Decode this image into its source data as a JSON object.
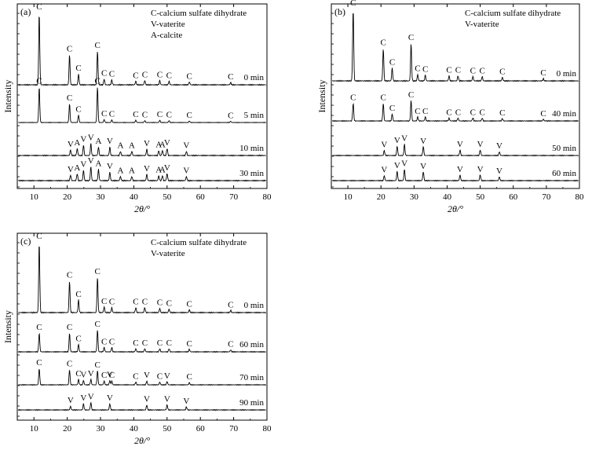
{
  "figure": {
    "x_axis_label": "2θ/°",
    "y_axis_label": "Intensity"
  },
  "chart_data": [
    {
      "panel": "(a)",
      "type": "line",
      "xlim": [
        5,
        80
      ],
      "xticks": [
        10,
        20,
        30,
        40,
        50,
        60,
        70,
        80
      ],
      "xlabel": "2θ/°",
      "ylabel": "Intensity",
      "legend": [
        "C-calcium sulfate dihydrate",
        "V-vaterite",
        "A-calcite"
      ],
      "series": [
        {
          "name": "0 min",
          "peaks": [
            {
              "x": 11.6,
              "h": 1.0,
              "m": "C"
            },
            {
              "x": 20.7,
              "h": 0.42,
              "m": "C"
            },
            {
              "x": 23.4,
              "h": 0.15,
              "m": "C"
            },
            {
              "x": 29.1,
              "h": 0.47,
              "m": "C"
            },
            {
              "x": 31.1,
              "h": 0.08,
              "m": "C"
            },
            {
              "x": 33.4,
              "h": 0.07,
              "m": "C"
            },
            {
              "x": 40.6,
              "h": 0.05,
              "m": "C"
            },
            {
              "x": 43.3,
              "h": 0.06,
              "m": "C"
            },
            {
              "x": 47.8,
              "h": 0.06,
              "m": "C"
            },
            {
              "x": 50.6,
              "h": 0.05,
              "m": "C"
            },
            {
              "x": 56.7,
              "h": 0.04,
              "m": "C"
            },
            {
              "x": 69.1,
              "h": 0.03,
              "m": "C"
            }
          ]
        },
        {
          "name": "5 min",
          "peaks": [
            {
              "x": 11.6,
              "h": 0.95,
              "m": "C"
            },
            {
              "x": 20.7,
              "h": 0.5,
              "m": "C"
            },
            {
              "x": 23.4,
              "h": 0.2,
              "m": "C"
            },
            {
              "x": 29.1,
              "h": 0.95,
              "m": "C"
            },
            {
              "x": 31.1,
              "h": 0.08,
              "m": "C"
            },
            {
              "x": 33.4,
              "h": 0.07,
              "m": "C"
            },
            {
              "x": 40.6,
              "h": 0.06,
              "m": "C"
            },
            {
              "x": 43.3,
              "h": 0.05,
              "m": "C"
            },
            {
              "x": 47.8,
              "h": 0.06,
              "m": "C"
            },
            {
              "x": 50.6,
              "h": 0.05,
              "m": "C"
            },
            {
              "x": 56.7,
              "h": 0.04,
              "m": "C"
            },
            {
              "x": 69.1,
              "h": 0.03,
              "m": "C"
            }
          ]
        },
        {
          "name": "10 min",
          "peaks": [
            {
              "x": 21.0,
              "h": 0.08,
              "m": "V"
            },
            {
              "x": 23.0,
              "h": 0.1,
              "m": "A"
            },
            {
              "x": 24.9,
              "h": 0.15,
              "m": "V"
            },
            {
              "x": 27.1,
              "h": 0.17,
              "m": "V"
            },
            {
              "x": 29.4,
              "h": 0.12,
              "m": "A"
            },
            {
              "x": 32.8,
              "h": 0.12,
              "m": "V"
            },
            {
              "x": 36.0,
              "h": 0.06,
              "m": "A"
            },
            {
              "x": 39.4,
              "h": 0.06,
              "m": "A"
            },
            {
              "x": 43.9,
              "h": 0.09,
              "m": "V"
            },
            {
              "x": 47.5,
              "h": 0.07,
              "m": "A"
            },
            {
              "x": 48.6,
              "h": 0.07,
              "m": "A"
            },
            {
              "x": 50.0,
              "h": 0.1,
              "m": "V"
            },
            {
              "x": 55.8,
              "h": 0.06,
              "m": "V"
            }
          ]
        },
        {
          "name": "30 min",
          "peaks": [
            {
              "x": 21.0,
              "h": 0.08,
              "m": "V"
            },
            {
              "x": 23.0,
              "h": 0.1,
              "m": "A"
            },
            {
              "x": 24.9,
              "h": 0.15,
              "m": "V"
            },
            {
              "x": 27.1,
              "h": 0.2,
              "m": "V"
            },
            {
              "x": 29.4,
              "h": 0.16,
              "m": "A"
            },
            {
              "x": 32.8,
              "h": 0.12,
              "m": "V"
            },
            {
              "x": 36.0,
              "h": 0.06,
              "m": "A"
            },
            {
              "x": 39.4,
              "h": 0.06,
              "m": "A"
            },
            {
              "x": 43.9,
              "h": 0.09,
              "m": "V"
            },
            {
              "x": 47.5,
              "h": 0.07,
              "m": "A"
            },
            {
              "x": 48.6,
              "h": 0.07,
              "m": "A"
            },
            {
              "x": 50.0,
              "h": 0.1,
              "m": "V"
            },
            {
              "x": 55.8,
              "h": 0.06,
              "m": "V"
            }
          ]
        }
      ]
    },
    {
      "panel": "(b)",
      "type": "line",
      "xlim": [
        5,
        80
      ],
      "xticks": [
        10,
        20,
        30,
        40,
        50,
        60,
        70,
        80
      ],
      "xlabel": "2θ/°",
      "ylabel": "Intensity",
      "legend": [
        "C-calcium sulfate dihydrate",
        "V-vaterite"
      ],
      "series": [
        {
          "name": "0 min",
          "peaks": [
            {
              "x": 11.6,
              "h": 1.0,
              "m": "C"
            },
            {
              "x": 20.7,
              "h": 0.45,
              "m": "C"
            },
            {
              "x": 23.4,
              "h": 0.18,
              "m": "C"
            },
            {
              "x": 29.1,
              "h": 0.52,
              "m": "C"
            },
            {
              "x": 31.1,
              "h": 0.09,
              "m": "C"
            },
            {
              "x": 33.4,
              "h": 0.08,
              "m": "C"
            },
            {
              "x": 40.6,
              "h": 0.07,
              "m": "C"
            },
            {
              "x": 43.3,
              "h": 0.07,
              "m": "C"
            },
            {
              "x": 47.8,
              "h": 0.06,
              "m": "C"
            },
            {
              "x": 50.6,
              "h": 0.06,
              "m": "C"
            },
            {
              "x": 56.7,
              "h": 0.05,
              "m": "C"
            },
            {
              "x": 69.1,
              "h": 0.03,
              "m": "C"
            }
          ]
        },
        {
          "name": "40 min",
          "peaks": [
            {
              "x": 11.6,
              "h": 0.3,
              "m": "C"
            },
            {
              "x": 20.7,
              "h": 0.3,
              "m": "C"
            },
            {
              "x": 23.4,
              "h": 0.12,
              "m": "C"
            },
            {
              "x": 29.1,
              "h": 0.35,
              "m": "C"
            },
            {
              "x": 31.1,
              "h": 0.07,
              "m": "C"
            },
            {
              "x": 33.4,
              "h": 0.07,
              "m": "C"
            },
            {
              "x": 40.6,
              "h": 0.05,
              "m": "C"
            },
            {
              "x": 43.3,
              "h": 0.05,
              "m": "C"
            },
            {
              "x": 47.8,
              "h": 0.05,
              "m": "C"
            },
            {
              "x": 50.6,
              "h": 0.05,
              "m": "C"
            },
            {
              "x": 56.7,
              "h": 0.04,
              "m": "C"
            },
            {
              "x": 69.1,
              "h": 0.03,
              "m": "C"
            }
          ]
        },
        {
          "name": "50 min",
          "peaks": [
            {
              "x": 21.0,
              "h": 0.08,
              "m": "V"
            },
            {
              "x": 24.9,
              "h": 0.15,
              "m": "V"
            },
            {
              "x": 27.1,
              "h": 0.18,
              "m": "V"
            },
            {
              "x": 32.8,
              "h": 0.14,
              "m": "V"
            },
            {
              "x": 43.9,
              "h": 0.09,
              "m": "V"
            },
            {
              "x": 50.0,
              "h": 0.09,
              "m": "V"
            },
            {
              "x": 55.8,
              "h": 0.06,
              "m": "V"
            }
          ]
        },
        {
          "name": "60 min",
          "peaks": [
            {
              "x": 21.0,
              "h": 0.08,
              "m": "V"
            },
            {
              "x": 24.9,
              "h": 0.15,
              "m": "V"
            },
            {
              "x": 27.1,
              "h": 0.18,
              "m": "V"
            },
            {
              "x": 32.8,
              "h": 0.14,
              "m": "V"
            },
            {
              "x": 43.9,
              "h": 0.09,
              "m": "V"
            },
            {
              "x": 50.0,
              "h": 0.09,
              "m": "V"
            },
            {
              "x": 55.8,
              "h": 0.06,
              "m": "V"
            }
          ]
        }
      ]
    },
    {
      "panel": "(c)",
      "type": "line",
      "xlim": [
        5,
        80
      ],
      "xticks": [
        10,
        20,
        30,
        40,
        50,
        60,
        70,
        80
      ],
      "xlabel": "2θ/°",
      "ylabel": "Intensity",
      "legend": [
        "C-calcium sulfate dihydrate",
        "V-vaterite"
      ],
      "series": [
        {
          "name": "0 min",
          "peaks": [
            {
              "x": 11.6,
              "h": 1.0,
              "m": "C"
            },
            {
              "x": 20.7,
              "h": 0.45,
              "m": "C"
            },
            {
              "x": 23.4,
              "h": 0.18,
              "m": "C"
            },
            {
              "x": 29.1,
              "h": 0.5,
              "m": "C"
            },
            {
              "x": 31.1,
              "h": 0.08,
              "m": "C"
            },
            {
              "x": 33.4,
              "h": 0.07,
              "m": "C"
            },
            {
              "x": 40.6,
              "h": 0.07,
              "m": "C"
            },
            {
              "x": 43.3,
              "h": 0.07,
              "m": "C"
            },
            {
              "x": 47.8,
              "h": 0.06,
              "m": "C"
            },
            {
              "x": 50.6,
              "h": 0.05,
              "m": "C"
            },
            {
              "x": 56.7,
              "h": 0.04,
              "m": "C"
            },
            {
              "x": 69.1,
              "h": 0.03,
              "m": "C"
            }
          ]
        },
        {
          "name": "60 min",
          "peaks": [
            {
              "x": 11.6,
              "h": 0.3,
              "m": "C"
            },
            {
              "x": 20.7,
              "h": 0.3,
              "m": "C"
            },
            {
              "x": 23.4,
              "h": 0.12,
              "m": "C"
            },
            {
              "x": 29.1,
              "h": 0.35,
              "m": "C"
            },
            {
              "x": 31.1,
              "h": 0.07,
              "m": "C"
            },
            {
              "x": 33.4,
              "h": 0.07,
              "m": "C"
            },
            {
              "x": 40.6,
              "h": 0.05,
              "m": "C"
            },
            {
              "x": 43.3,
              "h": 0.05,
              "m": "C"
            },
            {
              "x": 47.8,
              "h": 0.05,
              "m": "C"
            },
            {
              "x": 50.6,
              "h": 0.05,
              "m": "C"
            },
            {
              "x": 56.7,
              "h": 0.04,
              "m": "C"
            },
            {
              "x": 69.1,
              "h": 0.03,
              "m": "C"
            }
          ]
        },
        {
          "name": "70 min",
          "peaks": [
            {
              "x": 11.6,
              "h": 0.3,
              "m": "C"
            },
            {
              "x": 20.7,
              "h": 0.28,
              "m": "C"
            },
            {
              "x": 23.4,
              "h": 0.1,
              "m": "C"
            },
            {
              "x": 24.9,
              "h": 0.08,
              "m": "V"
            },
            {
              "x": 27.1,
              "h": 0.1,
              "m": "V"
            },
            {
              "x": 29.1,
              "h": 0.26,
              "m": "C"
            },
            {
              "x": 31.1,
              "h": 0.07,
              "m": "C"
            },
            {
              "x": 32.8,
              "h": 0.08,
              "m": "V"
            },
            {
              "x": 33.4,
              "h": 0.07,
              "m": "C"
            },
            {
              "x": 40.6,
              "h": 0.05,
              "m": "C"
            },
            {
              "x": 43.9,
              "h": 0.07,
              "m": "V"
            },
            {
              "x": 47.8,
              "h": 0.05,
              "m": "C"
            },
            {
              "x": 50.0,
              "h": 0.06,
              "m": "V"
            },
            {
              "x": 56.7,
              "h": 0.04,
              "m": "C"
            }
          ]
        },
        {
          "name": "90 min",
          "peaks": [
            {
              "x": 21.0,
              "h": 0.06,
              "m": "V"
            },
            {
              "x": 24.9,
              "h": 0.1,
              "m": "V"
            },
            {
              "x": 27.1,
              "h": 0.12,
              "m": "V"
            },
            {
              "x": 32.8,
              "h": 0.1,
              "m": "V"
            },
            {
              "x": 43.9,
              "h": 0.08,
              "m": "V"
            },
            {
              "x": 50.0,
              "h": 0.08,
              "m": "V"
            },
            {
              "x": 55.8,
              "h": 0.05,
              "m": "V"
            }
          ]
        }
      ]
    }
  ]
}
